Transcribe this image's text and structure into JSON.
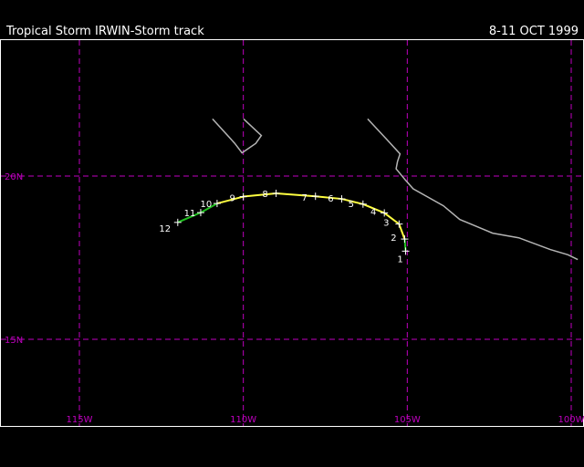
{
  "header": {
    "title": "Tropical Storm IRWIN-Storm track",
    "dates": "8-11 OCT 1999"
  },
  "colors": {
    "background": "#000000",
    "frame": "#ffffff",
    "grid": "#c000c0",
    "coastline": "#b4b4b4",
    "tropical_storm": "#ffff40",
    "tropical_depression": "#20c020",
    "labels": "#ffffff"
  },
  "map": {
    "lon_range": [
      -115.0,
      -100.0
    ],
    "lat_range": [
      13.75,
      21.75
    ],
    "lat_gridlines": [
      {
        "value": 20,
        "label": "20N"
      },
      {
        "value": 15,
        "label": "15N"
      }
    ],
    "lon_gridlines": [
      {
        "value": -115,
        "label": "115W"
      },
      {
        "value": -110,
        "label": "110W"
      },
      {
        "value": -105,
        "label": "105W"
      },
      {
        "value": -100,
        "label": "100W"
      }
    ],
    "coastlines": [
      [
        [
          -110.94,
          21.75
        ],
        [
          -110.26,
          21.0
        ],
        [
          -110.04,
          20.71
        ],
        [
          -109.62,
          21.0
        ],
        [
          -109.45,
          21.24
        ],
        [
          -109.99,
          21.75
        ]
      ],
      [
        [
          -106.21,
          21.75
        ],
        [
          -105.64,
          21.14
        ],
        [
          -105.22,
          20.68
        ],
        [
          -105.3,
          20.44
        ],
        [
          -105.34,
          20.22
        ],
        [
          -105.06,
          19.88
        ],
        [
          -104.82,
          19.61
        ],
        [
          -103.9,
          19.09
        ],
        [
          -103.4,
          18.67
        ],
        [
          -102.4,
          18.25
        ],
        [
          -101.6,
          18.11
        ],
        [
          -100.64,
          17.75
        ],
        [
          -100.1,
          17.59
        ],
        [
          -99.8,
          17.44
        ]
      ]
    ]
  },
  "track": [
    {
      "n": "1",
      "lat": 17.7,
      "lon": -105.05,
      "intensity": "depression"
    },
    {
      "n": "2",
      "lat": 18.07,
      "lon": -105.08,
      "intensity": "depression"
    },
    {
      "n": "3",
      "lat": 18.53,
      "lon": -105.25,
      "intensity": "storm"
    },
    {
      "n": "4",
      "lat": 18.87,
      "lon": -105.7,
      "intensity": "storm"
    },
    {
      "n": "5",
      "lat": 19.14,
      "lon": -106.35,
      "intensity": "storm"
    },
    {
      "n": "6",
      "lat": 19.3,
      "lon": -107.0,
      "intensity": "storm"
    },
    {
      "n": "7",
      "lat": 19.38,
      "lon": -107.8,
      "intensity": "storm"
    },
    {
      "n": "8",
      "lat": 19.47,
      "lon": -109.0,
      "intensity": "storm"
    },
    {
      "n": "9",
      "lat": 19.37,
      "lon": -110.0,
      "intensity": "storm"
    },
    {
      "n": "10",
      "lat": 19.16,
      "lon": -110.8,
      "intensity": "storm"
    },
    {
      "n": "11",
      "lat": 18.88,
      "lon": -111.3,
      "intensity": "depression"
    },
    {
      "n": "12",
      "lat": 18.58,
      "lon": -112.0,
      "intensity": "depression"
    }
  ]
}
